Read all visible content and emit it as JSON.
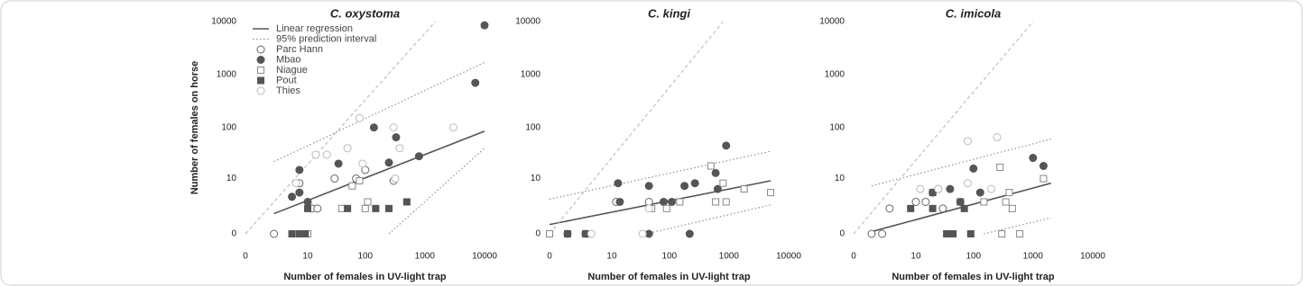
{
  "chart_data": [
    {
      "type": "scatter",
      "title": "C. oxystoma",
      "xlabel": "Number of females in UV-light trap",
      "ylabel": "Number of females on horse",
      "scale": "log1p",
      "xlim": [
        0,
        10000
      ],
      "ylim": [
        0,
        10000
      ],
      "xticks": [
        0,
        10,
        100,
        1000,
        10000
      ],
      "yticks": [
        0,
        10,
        100,
        1000,
        10000
      ],
      "legend": "top-left",
      "lines": [
        {
          "name": "Linear regression",
          "style": "solid",
          "color": "#555555",
          "x": [
            2,
            10000
          ],
          "values": [
            1.4,
            85
          ]
        },
        {
          "name": "95% prediction interval",
          "style": "dotted",
          "color": "#888888",
          "x": [
            2,
            10000
          ],
          "values": [
            22,
            1700
          ]
        },
        {
          "style": "dotted",
          "color": "#888888",
          "x": [
            250,
            10000
          ],
          "values": [
            0,
            40
          ]
        },
        {
          "style": "dashed",
          "color": "#bbbbbb",
          "x": [
            0,
            1500
          ],
          "values": [
            0,
            10000
          ]
        }
      ],
      "series": [
        {
          "name": "Parc Hann",
          "marker": "circle",
          "filled": false,
          "color": "#666666",
          "x": [
            2,
            7,
            300,
            100,
            30,
            70,
            12,
            15
          ],
          "values": [
            0,
            8,
            9,
            15,
            10,
            10,
            2,
            2
          ]
        },
        {
          "name": "Mbao",
          "marker": "circle",
          "filled": true,
          "color": "#555555",
          "x": [
            10000,
            7000,
            800,
            330,
            250,
            140,
            35,
            7,
            7,
            5,
            10
          ],
          "values": [
            8500,
            700,
            28,
            65,
            21,
            100,
            20,
            15,
            5,
            4,
            3
          ]
        },
        {
          "name": "Niague",
          "marker": "square",
          "filled": false,
          "color": "#888888",
          "x": [
            100,
            40,
            110,
            10,
            60,
            80
          ],
          "values": [
            2,
            2,
            3,
            0,
            7,
            9
          ]
        },
        {
          "name": "Pout",
          "marker": "square",
          "filled": true,
          "color": "#555555",
          "x": [
            10,
            50,
            150,
            250,
            500,
            5,
            7,
            9
          ],
          "values": [
            2,
            2,
            2,
            2,
            3,
            0,
            0,
            0
          ]
        },
        {
          "name": "Thies",
          "marker": "circle",
          "filled": false,
          "color": "#bbbbbb",
          "x": [
            80,
            300,
            380,
            22,
            14,
            50,
            90,
            6,
            320,
            3000
          ],
          "values": [
            150,
            100,
            40,
            30,
            30,
            40,
            20,
            8,
            10,
            100
          ]
        }
      ]
    },
    {
      "type": "scatter",
      "title": "C. kingi",
      "xlabel": "Number of females in UV-light trap",
      "scale": "log1p",
      "xlim": [
        0,
        10000
      ],
      "ylim": [
        0,
        10000
      ],
      "xticks": [
        0,
        10,
        100,
        1000,
        10000
      ],
      "yticks": [
        0,
        10,
        100,
        1000,
        10000
      ],
      "lines": [
        {
          "style": "solid",
          "color": "#555555",
          "x": [
            0,
            5000
          ],
          "values": [
            0.5,
            9
          ]
        },
        {
          "style": "dotted",
          "color": "#888888",
          "x": [
            0,
            5000
          ],
          "values": [
            3.5,
            35
          ]
        },
        {
          "style": "dotted",
          "color": "#888888",
          "x": [
            40,
            5000
          ],
          "values": [
            0,
            2.5
          ]
        },
        {
          "style": "dashed",
          "color": "#bbbbbb",
          "x": [
            0,
            800
          ],
          "values": [
            0,
            10000
          ]
        }
      ],
      "series": [
        {
          "marker": "circle",
          "filled": false,
          "color": "#666666",
          "x": [
            12,
            45,
            1,
            3
          ],
          "values": [
            3,
            3,
            0,
            0
          ]
        },
        {
          "marker": "circle",
          "filled": true,
          "color": "#555555",
          "x": [
            900,
            600,
            650,
            180,
            270,
            45,
            110,
            80,
            13,
            14,
            45,
            220
          ],
          "values": [
            45,
            13,
            6,
            7,
            8,
            7,
            3,
            3,
            8,
            3,
            0,
            0
          ]
        },
        {
          "marker": "square",
          "filled": false,
          "color": "#888888",
          "x": [
            500,
            800,
            900,
            600,
            150,
            50,
            90,
            1800,
            5000,
            0
          ],
          "values": [
            18,
            8,
            3,
            3,
            3,
            2,
            2,
            6,
            5,
            0
          ]
        },
        {
          "marker": "square",
          "filled": true,
          "color": "#555555",
          "x": [
            1,
            3
          ],
          "values": [
            0,
            0
          ]
        },
        {
          "marker": "circle",
          "filled": false,
          "color": "#bbbbbb",
          "x": [
            45,
            4,
            35
          ],
          "values": [
            2,
            0,
            0
          ]
        }
      ]
    },
    {
      "type": "scatter",
      "title": "C. imicola",
      "xlabel": "Number of females in UV-light trap",
      "scale": "log1p",
      "xlim": [
        0,
        10000
      ],
      "ylim": [
        0,
        10000
      ],
      "xticks": [
        0,
        10,
        100,
        1000,
        10000
      ],
      "yticks": [
        0,
        10,
        100,
        1000,
        10000
      ],
      "lines": [
        {
          "style": "solid",
          "color": "#555555",
          "x": [
            1,
            2000
          ],
          "values": [
            0.1,
            8
          ]
        },
        {
          "style": "dotted",
          "color": "#888888",
          "x": [
            1,
            2000
          ],
          "values": [
            7,
            60
          ]
        },
        {
          "style": "dotted",
          "color": "#888888",
          "x": [
            150,
            2000
          ],
          "values": [
            0,
            1
          ]
        },
        {
          "style": "dashed",
          "color": "#bbbbbb",
          "x": [
            0,
            1000
          ],
          "values": [
            0,
            10000
          ]
        }
      ],
      "series": [
        {
          "marker": "circle",
          "filled": false,
          "color": "#666666",
          "x": [
            1,
            2,
            3,
            10,
            15,
            30
          ],
          "values": [
            0,
            0,
            2,
            3,
            3,
            2
          ]
        },
        {
          "marker": "circle",
          "filled": true,
          "color": "#555555",
          "x": [
            1000,
            1500,
            100,
            130,
            40,
            25,
            20,
            60
          ],
          "values": [
            26,
            18,
            16,
            5,
            6,
            6,
            5,
            3
          ]
        },
        {
          "marker": "square",
          "filled": false,
          "color": "#888888",
          "x": [
            280,
            1500,
            400,
            350,
            150,
            450,
            300,
            600
          ],
          "values": [
            17,
            10,
            5,
            3,
            3,
            2,
            0,
            0
          ]
        },
        {
          "marker": "square",
          "filled": true,
          "color": "#555555",
          "x": [
            20,
            8,
            20,
            60,
            35,
            45,
            70,
            90
          ],
          "values": [
            5,
            2,
            2,
            3,
            0,
            0,
            2,
            0
          ]
        },
        {
          "marker": "circle",
          "filled": false,
          "color": "#bbbbbb",
          "x": [
            80,
            250,
            80,
            12,
            25,
            200
          ],
          "values": [
            55,
            65,
            8,
            6,
            6,
            6
          ]
        }
      ]
    }
  ]
}
